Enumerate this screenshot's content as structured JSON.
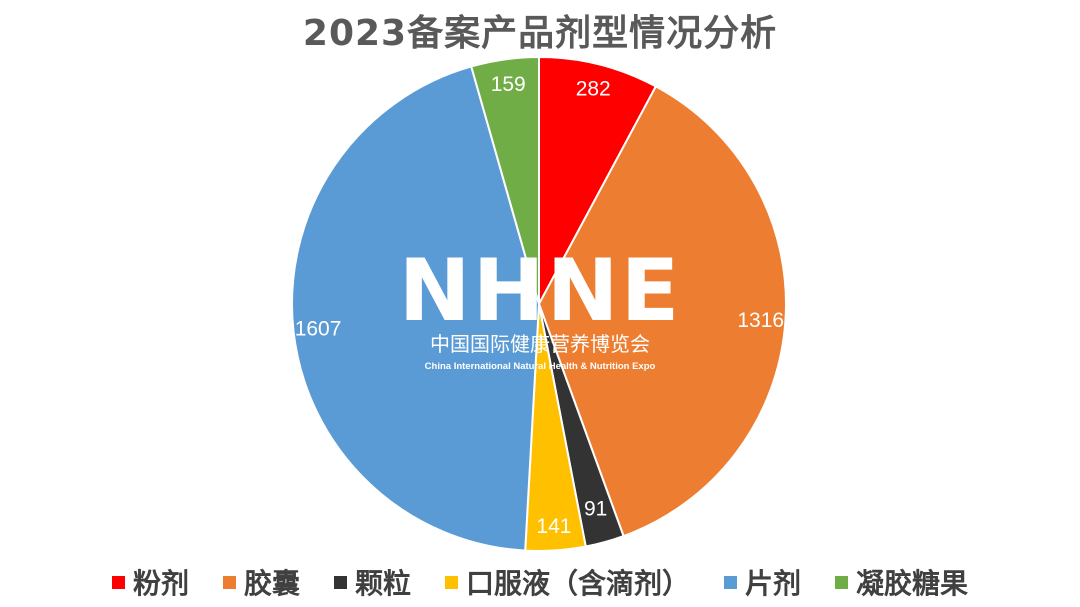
{
  "chart_data": {
    "type": "pie",
    "title": "2023备案产品剂型情况分析",
    "categories": [
      "粉剂",
      "胶囊",
      "颗粒",
      "口服液（含滴剂）",
      "片剂",
      "凝胶糖果"
    ],
    "values": [
      282,
      1316,
      91,
      141,
      1607,
      159
    ],
    "colors": [
      "#FF0000",
      "#ED7D31",
      "#333333",
      "#FFC000",
      "#5B9BD5",
      "#70AD47"
    ],
    "legend_position": "bottom",
    "start_angle": "top, clockwise",
    "data_labels": "values inside slices"
  },
  "watermark": {
    "main": "NHNE",
    "subtitle_cn": "中国国际健康营养博览会",
    "subtitle_en": "China International Natural Health & Nutrition Expo"
  }
}
